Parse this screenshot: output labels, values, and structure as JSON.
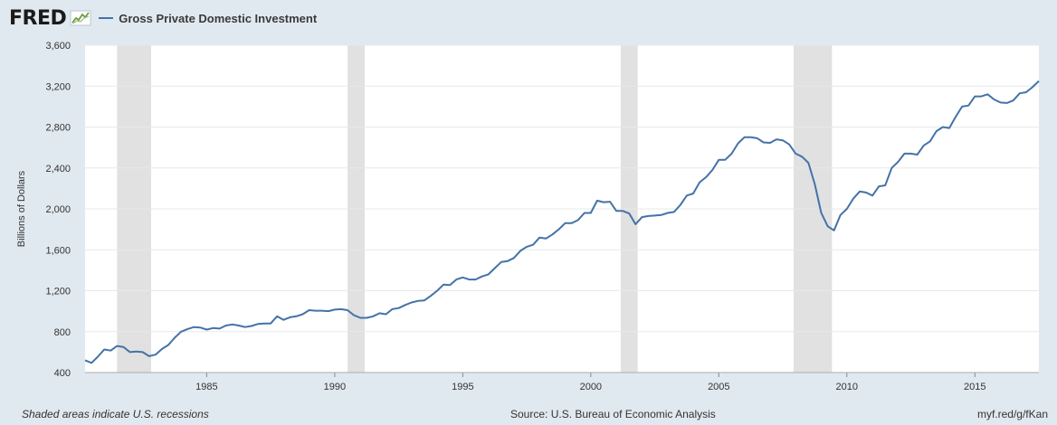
{
  "header": {
    "logo_text": "FRED",
    "series_name": "Gross Private Domestic Investment"
  },
  "footer": {
    "note": "Shaded areas indicate U.S. recessions",
    "source": "Source: U.S. Bureau of Economic Analysis",
    "link": "myf.red/g/fKan"
  },
  "colors": {
    "line": "#4572a7",
    "recession": "#e1e1e1",
    "grid": "#e8e8e8",
    "background": "#e1e9f0"
  },
  "chart_data": {
    "type": "line",
    "title": "Gross Private Domestic Investment",
    "xlabel": "",
    "ylabel": "Billions of Dollars",
    "xlim": [
      1980.25,
      2017.5
    ],
    "ylim": [
      400,
      3600
    ],
    "y_ticks": [
      400,
      800,
      1200,
      1600,
      2000,
      2400,
      2800,
      3200,
      3600
    ],
    "y_tick_labels": [
      "400",
      "800",
      "1,200",
      "1,600",
      "2,000",
      "2,400",
      "2,800",
      "3,200",
      "3,600"
    ],
    "x_ticks": [
      1985,
      1990,
      1995,
      2000,
      2005,
      2010,
      2015
    ],
    "x_tick_labels": [
      "1985",
      "1990",
      "1995",
      "2000",
      "2005",
      "2010",
      "2015"
    ],
    "grid": true,
    "recessions": [
      [
        1981.5,
        1982.83
      ],
      [
        1990.5,
        1991.17
      ],
      [
        2001.17,
        2001.83
      ],
      [
        2007.92,
        2009.42
      ]
    ],
    "series": [
      {
        "name": "Gross Private Domestic Investment",
        "x": [
          1980.25,
          1980.5,
          1980.75,
          1981.0,
          1981.25,
          1981.5,
          1981.75,
          1982.0,
          1982.25,
          1982.5,
          1982.75,
          1983.0,
          1983.25,
          1983.5,
          1983.75,
          1984.0,
          1984.25,
          1984.5,
          1984.75,
          1985.0,
          1985.25,
          1985.5,
          1985.75,
          1986.0,
          1986.25,
          1986.5,
          1986.75,
          1987.0,
          1987.25,
          1987.5,
          1987.75,
          1988.0,
          1988.25,
          1988.5,
          1988.75,
          1989.0,
          1989.25,
          1989.5,
          1989.75,
          1990.0,
          1990.25,
          1990.5,
          1990.75,
          1991.0,
          1991.25,
          1991.5,
          1991.75,
          1992.0,
          1992.25,
          1992.5,
          1992.75,
          1993.0,
          1993.25,
          1993.5,
          1993.75,
          1994.0,
          1994.25,
          1994.5,
          1994.75,
          1995.0,
          1995.25,
          1995.5,
          1995.75,
          1996.0,
          1996.25,
          1996.5,
          1996.75,
          1997.0,
          1997.25,
          1997.5,
          1997.75,
          1998.0,
          1998.25,
          1998.5,
          1998.75,
          1999.0,
          1999.25,
          1999.5,
          1999.75,
          2000.0,
          2000.25,
          2000.5,
          2000.75,
          2001.0,
          2001.25,
          2001.5,
          2001.75,
          2002.0,
          2002.25,
          2002.5,
          2002.75,
          2003.0,
          2003.25,
          2003.5,
          2003.75,
          2004.0,
          2004.25,
          2004.5,
          2004.75,
          2005.0,
          2005.25,
          2005.5,
          2005.75,
          2006.0,
          2006.25,
          2006.5,
          2006.75,
          2007.0,
          2007.25,
          2007.5,
          2007.75,
          2008.0,
          2008.25,
          2008.5,
          2008.75,
          2009.0,
          2009.25,
          2009.5,
          2009.75,
          2010.0,
          2010.25,
          2010.5,
          2010.75,
          2011.0,
          2011.25,
          2011.5,
          2011.75,
          2012.0,
          2012.25,
          2012.5,
          2012.75,
          2013.0,
          2013.25,
          2013.5,
          2013.75,
          2014.0,
          2014.25,
          2014.5,
          2014.75,
          2015.0,
          2015.25,
          2015.5,
          2015.75,
          2016.0,
          2016.25,
          2016.5,
          2016.75,
          2017.0,
          2017.25,
          2017.5
        ],
        "values": [
          520,
          495,
          555,
          625,
          615,
          660,
          650,
          600,
          605,
          600,
          560,
          575,
          630,
          670,
          740,
          800,
          825,
          845,
          840,
          820,
          835,
          830,
          860,
          870,
          860,
          845,
          855,
          875,
          880,
          880,
          950,
          915,
          940,
          950,
          970,
          1010,
          1005,
          1005,
          1000,
          1015,
          1020,
          1010,
          960,
          935,
          935,
          950,
          980,
          970,
          1020,
          1030,
          1060,
          1085,
          1100,
          1105,
          1150,
          1200,
          1260,
          1255,
          1310,
          1330,
          1310,
          1310,
          1340,
          1360,
          1420,
          1480,
          1490,
          1520,
          1590,
          1630,
          1650,
          1720,
          1710,
          1750,
          1800,
          1860,
          1860,
          1890,
          1960,
          1960,
          2080,
          2065,
          2070,
          1980,
          1980,
          1955,
          1850,
          1920,
          1930,
          1935,
          1940,
          1960,
          1970,
          2040,
          2130,
          2150,
          2260,
          2310,
          2380,
          2480,
          2480,
          2540,
          2640,
          2700,
          2700,
          2690,
          2650,
          2645,
          2680,
          2670,
          2630,
          2540,
          2510,
          2450,
          2240,
          1960,
          1830,
          1790,
          1940,
          2000,
          2100,
          2170,
          2160,
          2130,
          2220,
          2230,
          2400,
          2460,
          2540,
          2540,
          2530,
          2620,
          2660,
          2760,
          2800,
          2790,
          2900,
          3000,
          3010,
          3100,
          3100,
          3120,
          3070,
          3040,
          3035,
          3060,
          3130,
          3140,
          3190,
          3250
        ]
      }
    ]
  }
}
